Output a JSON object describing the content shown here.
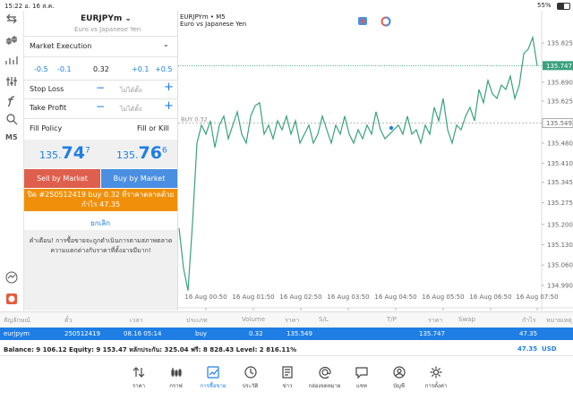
{
  "status_bar": {
    "time": "15:22 อ. 16 ส.ค.",
    "battery": "55%"
  },
  "sidebar": {
    "timeframe": "M5"
  },
  "order_panel": {
    "symbol": "EURJPYm",
    "description": "Euro vs Japanese Yen",
    "execution": "Market Execution",
    "volume_steps": [
      "-0.5",
      "-0.1",
      "+0.1",
      "+0.5"
    ],
    "volume": "0.32",
    "stop_loss": {
      "label": "Stop Loss",
      "value": "ไม่ได้ตั้ง"
    },
    "take_profit": {
      "label": "Take Profit",
      "value": "ไม่ได้ตั้ง"
    },
    "fill_policy": {
      "label": "Fill Policy",
      "value": "Fill or Kill"
    },
    "bid": {
      "prefix": "135.",
      "big": "74",
      "point": "7"
    },
    "ask": {
      "prefix": "135.",
      "big": "76",
      "point": "6"
    },
    "sell_button": "Sell by Market",
    "buy_button": "Buy by Market",
    "close_button": "ปิด #250512419 buy 0.32 ที่ราคาตลาดด้วยกำไร 47.35",
    "cancel": "ยกเลิก",
    "warning": "คำเตือน! การซื้อขายจะถูกดำเนินการตามสภาพตลาด ความแตกต่างกับราคาที่ตั้งอาจมีมาก!"
  },
  "chart": {
    "type": "line",
    "title": "EURJPYm • M5",
    "subtitle": "Euro vs Japanese Yen",
    "color": "#3aa17e",
    "values": [
      135.187,
      135.049,
      134.972,
      135.203,
      135.48,
      135.542,
      135.511,
      135.557,
      135.465,
      135.542,
      135.573,
      135.495,
      135.542,
      135.588,
      135.511,
      135.48,
      135.573,
      135.609,
      135.619,
      135.511,
      135.542,
      135.495,
      135.557,
      135.526,
      135.573,
      135.511,
      135.557,
      135.48,
      135.511,
      135.542,
      135.48,
      135.511,
      135.573,
      135.526,
      135.48,
      135.542,
      135.511,
      135.573,
      135.511,
      135.48,
      135.526,
      135.495,
      135.542,
      135.511,
      135.588,
      135.526,
      135.495,
      135.511,
      135.526,
      135.542,
      135.511,
      135.573,
      135.511,
      135.526,
      135.48,
      135.542,
      135.511,
      135.603,
      135.557,
      135.634,
      135.526,
      135.48,
      135.542,
      135.526,
      135.573,
      135.603,
      135.557,
      135.665,
      135.619,
      135.696,
      135.65,
      135.634,
      135.68,
      135.665,
      135.711,
      135.634,
      135.68,
      135.788,
      135.804,
      135.844,
      135.747
    ],
    "xlim": [
      0,
      80
    ],
    "xticks": [
      {
        "value": 6,
        "label": "16 Aug 00:50"
      },
      {
        "value": 16.6,
        "label": "16 Aug 01:50"
      },
      {
        "value": 27.2,
        "label": "16 Aug 02:50"
      },
      {
        "value": 37.8,
        "label": "16 Aug 03:50"
      },
      {
        "value": 48.4,
        "label": "16 Aug 04:50"
      },
      {
        "value": 59,
        "label": "16 Aug 05:50"
      },
      {
        "value": 69.6,
        "label": "16 Aug 06:50"
      },
      {
        "value": 80,
        "label": "16 Aug 07:50"
      }
    ],
    "ylim": [
      134.925,
      135.936
    ],
    "yticks": [
      135.825,
      {
        "value": 135.69,
        "label": "135.690"
      },
      135.625,
      {
        "value": 135.48,
        "label": "135.480"
      },
      {
        "value": 135.41,
        "label": "135.410"
      },
      135.345,
      135.275,
      {
        "value": 135.2,
        "label": "135.200"
      },
      {
        "value": 135.13,
        "label": "135.130"
      },
      {
        "value": 135.06,
        "label": "135.060"
      },
      {
        "value": 134.99,
        "label": "134.990"
      }
    ],
    "bid_line": {
      "value": 135.747,
      "label": "135.747"
    },
    "position_line": {
      "value": 135.549,
      "label": "135.549",
      "text": "BUY 0.32"
    }
  },
  "positions_table": {
    "headers": [
      "สัญลักษณ์",
      "ตั๋ว",
      "เวลา",
      "ประเภท",
      "Volume",
      "ราคา",
      "S/L",
      "T/P",
      "ราคา",
      "Swap",
      "กำไร",
      "หมายเหตุ"
    ],
    "row": {
      "symbol": "eurjpym",
      "ticket": "250512419",
      "time": "08.16 05:14",
      "type": "buy",
      "volume": "0.32",
      "open_price": "135.549",
      "current_price": "135.747",
      "profit": "47.35"
    }
  },
  "balance": {
    "summary": "Balance: 9 106.12 Equity: 9 153.47 หลักประกัน: 325.04 ฟรี: 8 828.43 Level: 2 816.11%",
    "profit": "47.35",
    "currency": "USD"
  },
  "tab_bar": {
    "tabs": [
      "ราคา",
      "กราฟ",
      "การซื้อขาย",
      "ประวัติ",
      "ข่าว",
      "กล่องจดหมาย",
      "แชท",
      "บัญชี",
      "การตั้งค่า"
    ],
    "active": "การซื้อขาย"
  }
}
